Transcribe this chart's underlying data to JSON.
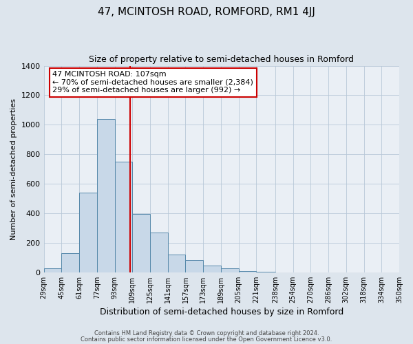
{
  "title": "47, MCINTOSH ROAD, ROMFORD, RM1 4JJ",
  "subtitle": "Size of property relative to semi-detached houses in Romford",
  "xlabel": "Distribution of semi-detached houses by size in Romford",
  "ylabel": "Number of semi-detached properties",
  "bin_labels": [
    "29sqm",
    "45sqm",
    "61sqm",
    "77sqm",
    "93sqm",
    "109sqm",
    "125sqm",
    "141sqm",
    "157sqm",
    "173sqm",
    "189sqm",
    "205sqm",
    "221sqm",
    "238sqm",
    "254sqm",
    "270sqm",
    "286sqm",
    "302sqm",
    "318sqm",
    "334sqm",
    "350sqm"
  ],
  "bin_edges": [
    29,
    45,
    61,
    77,
    93,
    109,
    125,
    141,
    157,
    173,
    189,
    205,
    221,
    238,
    254,
    270,
    286,
    302,
    318,
    334,
    350
  ],
  "bar_heights": [
    25,
    130,
    540,
    1040,
    750,
    395,
    270,
    120,
    85,
    45,
    28,
    10,
    5,
    0,
    0,
    0,
    0,
    0,
    0,
    0
  ],
  "bar_color": "#c8d8e8",
  "bar_edge_color": "#5588aa",
  "property_value": 107,
  "vline_color": "#cc0000",
  "annotation_title": "47 MCINTOSH ROAD: 107sqm",
  "annotation_line1": "← 70% of semi-detached houses are smaller (2,384)",
  "annotation_line2": "29% of semi-detached houses are larger (992) →",
  "annotation_box_color": "#ffffff",
  "annotation_box_edge": "#cc0000",
  "ylim": [
    0,
    1400
  ],
  "yticks": [
    0,
    200,
    400,
    600,
    800,
    1000,
    1200,
    1400
  ],
  "footer1": "Contains HM Land Registry data © Crown copyright and database right 2024.",
  "footer2": "Contains public sector information licensed under the Open Government Licence v3.0.",
  "bg_color": "#dde5ed",
  "plot_bg_color": "#eaeff5"
}
